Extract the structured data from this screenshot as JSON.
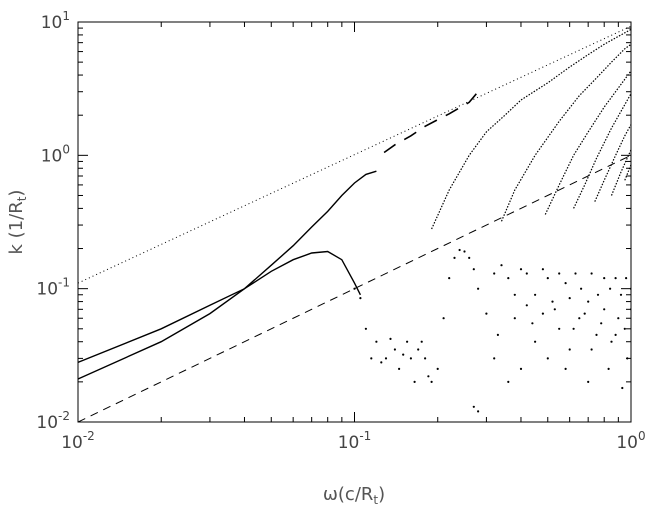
{
  "chart_data": {
    "type": "line",
    "xscale": "log",
    "yscale": "log",
    "xlim": [
      0.01,
      1
    ],
    "ylim": [
      0.01,
      10
    ],
    "xlabel": "ω(c/R_t)",
    "ylabel": "k (1/R_t)",
    "grid": false,
    "x_ticks": [
      {
        "value": 0.01,
        "base": "10",
        "exp": "-2"
      },
      {
        "value": 0.1,
        "base": "10",
        "exp": "-1"
      },
      {
        "value": 1,
        "base": "10",
        "exp": "0"
      }
    ],
    "y_ticks": [
      {
        "value": 0.01,
        "base": "10",
        "exp": "-2"
      },
      {
        "value": 0.1,
        "base": "10",
        "exp": "-1"
      },
      {
        "value": 1,
        "base": "10",
        "exp": "0"
      },
      {
        "value": 10,
        "base": "10",
        "exp": "1"
      }
    ],
    "series": [
      {
        "style": "dotted",
        "points": [
          [
            0.01,
            0.11
          ],
          [
            1,
            9.3
          ]
        ]
      },
      {
        "style": "dashed",
        "points": [
          [
            0.01,
            0.01
          ],
          [
            1,
            1.0
          ]
        ]
      },
      {
        "style": "solid",
        "points": [
          [
            0.01,
            0.028
          ],
          [
            0.02,
            0.05
          ],
          [
            0.03,
            0.075
          ],
          [
            0.04,
            0.1
          ],
          [
            0.05,
            0.135
          ],
          [
            0.06,
            0.165
          ],
          [
            0.07,
            0.185
          ],
          [
            0.08,
            0.19
          ],
          [
            0.09,
            0.165
          ],
          [
            0.1,
            0.11
          ],
          [
            0.105,
            0.09
          ]
        ]
      },
      {
        "style": "solid",
        "points": [
          [
            0.01,
            0.021
          ],
          [
            0.02,
            0.04
          ],
          [
            0.03,
            0.065
          ],
          [
            0.04,
            0.1
          ],
          [
            0.05,
            0.15
          ],
          [
            0.06,
            0.21
          ],
          [
            0.07,
            0.29
          ],
          [
            0.08,
            0.38
          ],
          [
            0.09,
            0.5
          ],
          [
            0.1,
            0.62
          ],
          [
            0.11,
            0.72
          ],
          [
            0.12,
            0.76
          ]
        ]
      },
      {
        "style": "dashes",
        "points": [
          [
            0.128,
            1.05
          ],
          [
            0.14,
            1.2
          ],
          [
            0.16,
            1.4
          ],
          [
            0.18,
            1.65
          ],
          [
            0.2,
            1.85
          ],
          [
            0.22,
            2.05
          ],
          [
            0.26,
            2.5
          ],
          [
            0.28,
            3.0
          ]
        ]
      },
      {
        "style": "dotted-dense",
        "points": [
          [
            0.19,
            0.28
          ],
          [
            0.22,
            0.55
          ],
          [
            0.26,
            1.0
          ],
          [
            0.3,
            1.5
          ],
          [
            0.35,
            2.0
          ],
          [
            0.4,
            2.6
          ],
          [
            0.5,
            3.5
          ],
          [
            0.6,
            4.6
          ],
          [
            0.7,
            5.7
          ],
          [
            0.8,
            6.8
          ],
          [
            0.9,
            7.8
          ],
          [
            1.0,
            8.8
          ]
        ]
      },
      {
        "style": "dotted-dense",
        "points": [
          [
            0.34,
            0.32
          ],
          [
            0.38,
            0.55
          ],
          [
            0.45,
            1.0
          ],
          [
            0.55,
            1.8
          ],
          [
            0.65,
            2.8
          ],
          [
            0.75,
            3.8
          ],
          [
            0.85,
            5.0
          ],
          [
            0.95,
            6.3
          ],
          [
            1.0,
            6.8
          ]
        ]
      },
      {
        "style": "dotted-dense",
        "points": [
          [
            0.49,
            0.36
          ],
          [
            0.55,
            0.6
          ],
          [
            0.62,
            1.0
          ],
          [
            0.7,
            1.5
          ],
          [
            0.8,
            2.3
          ],
          [
            0.9,
            3.2
          ],
          [
            1.0,
            4.3
          ]
        ]
      },
      {
        "style": "dotted-dense",
        "points": [
          [
            0.62,
            0.4
          ],
          [
            0.68,
            0.6
          ],
          [
            0.75,
            0.95
          ],
          [
            0.85,
            1.6
          ],
          [
            0.95,
            2.4
          ],
          [
            1.0,
            2.9
          ]
        ]
      },
      {
        "style": "dotted-dense",
        "points": [
          [
            0.74,
            0.45
          ],
          [
            0.8,
            0.65
          ],
          [
            0.88,
            1.0
          ],
          [
            0.95,
            1.4
          ],
          [
            1.0,
            1.7
          ]
        ]
      },
      {
        "style": "dotted-dense",
        "points": [
          [
            0.85,
            0.5
          ],
          [
            0.92,
            0.75
          ],
          [
            1.0,
            1.1
          ]
        ]
      },
      {
        "style": "dotted-dense",
        "points": [
          [
            0.95,
            0.65
          ],
          [
            1.0,
            0.85
          ]
        ]
      },
      {
        "style": "dots",
        "points": [
          [
            0.1,
            0.1
          ],
          [
            0.105,
            0.085
          ],
          [
            0.11,
            0.05
          ],
          [
            0.115,
            0.03
          ],
          [
            0.12,
            0.04
          ],
          [
            0.125,
            0.028
          ],
          [
            0.13,
            0.03
          ],
          [
            0.135,
            0.042
          ],
          [
            0.14,
            0.035
          ],
          [
            0.145,
            0.025
          ],
          [
            0.15,
            0.032
          ],
          [
            0.155,
            0.04
          ],
          [
            0.16,
            0.03
          ],
          [
            0.165,
            0.02
          ],
          [
            0.17,
            0.035
          ],
          [
            0.175,
            0.04
          ],
          [
            0.18,
            0.03
          ],
          [
            0.185,
            0.022
          ],
          [
            0.19,
            0.02
          ],
          [
            0.2,
            0.025
          ],
          [
            0.21,
            0.06
          ],
          [
            0.22,
            0.12
          ],
          [
            0.23,
            0.17
          ],
          [
            0.24,
            0.195
          ],
          [
            0.25,
            0.19
          ],
          [
            0.26,
            0.17
          ],
          [
            0.27,
            0.14
          ],
          [
            0.28,
            0.1
          ],
          [
            0.3,
            0.065
          ],
          [
            0.32,
            0.13
          ],
          [
            0.34,
            0.15
          ],
          [
            0.36,
            0.12
          ],
          [
            0.38,
            0.09
          ],
          [
            0.4,
            0.14
          ],
          [
            0.42,
            0.13
          ],
          [
            0.45,
            0.09
          ],
          [
            0.48,
            0.14
          ],
          [
            0.5,
            0.12
          ],
          [
            0.52,
            0.08
          ],
          [
            0.55,
            0.13
          ],
          [
            0.58,
            0.11
          ],
          [
            0.6,
            0.085
          ],
          [
            0.63,
            0.13
          ],
          [
            0.66,
            0.1
          ],
          [
            0.7,
            0.08
          ],
          [
            0.72,
            0.13
          ],
          [
            0.76,
            0.09
          ],
          [
            0.8,
            0.12
          ],
          [
            0.84,
            0.1
          ],
          [
            0.88,
            0.12
          ],
          [
            0.92,
            0.09
          ],
          [
            0.96,
            0.12
          ],
          [
            1.0,
            0.1
          ],
          [
            0.27,
            0.013
          ],
          [
            0.28,
            0.012
          ],
          [
            0.32,
            0.03
          ],
          [
            0.36,
            0.02
          ],
          [
            0.4,
            0.025
          ],
          [
            0.45,
            0.04
          ],
          [
            0.5,
            0.03
          ],
          [
            0.55,
            0.05
          ],
          [
            0.6,
            0.035
          ],
          [
            0.65,
            0.06
          ],
          [
            0.7,
            0.02
          ],
          [
            0.75,
            0.045
          ],
          [
            0.8,
            0.07
          ],
          [
            0.85,
            0.04
          ],
          [
            0.9,
            0.06
          ],
          [
            0.95,
            0.05
          ],
          [
            1.0,
            0.07
          ],
          [
            0.38,
            0.06
          ],
          [
            0.42,
            0.075
          ],
          [
            0.48,
            0.065
          ],
          [
            0.53,
            0.07
          ],
          [
            0.62,
            0.05
          ],
          [
            0.68,
            0.065
          ],
          [
            0.78,
            0.055
          ],
          [
            0.88,
            0.045
          ],
          [
            0.97,
            0.03
          ],
          [
            0.33,
            0.045
          ],
          [
            0.44,
            0.055
          ],
          [
            0.58,
            0.025
          ],
          [
            0.72,
            0.035
          ],
          [
            0.83,
            0.025
          ],
          [
            0.93,
            0.018
          ]
        ]
      }
    ]
  }
}
